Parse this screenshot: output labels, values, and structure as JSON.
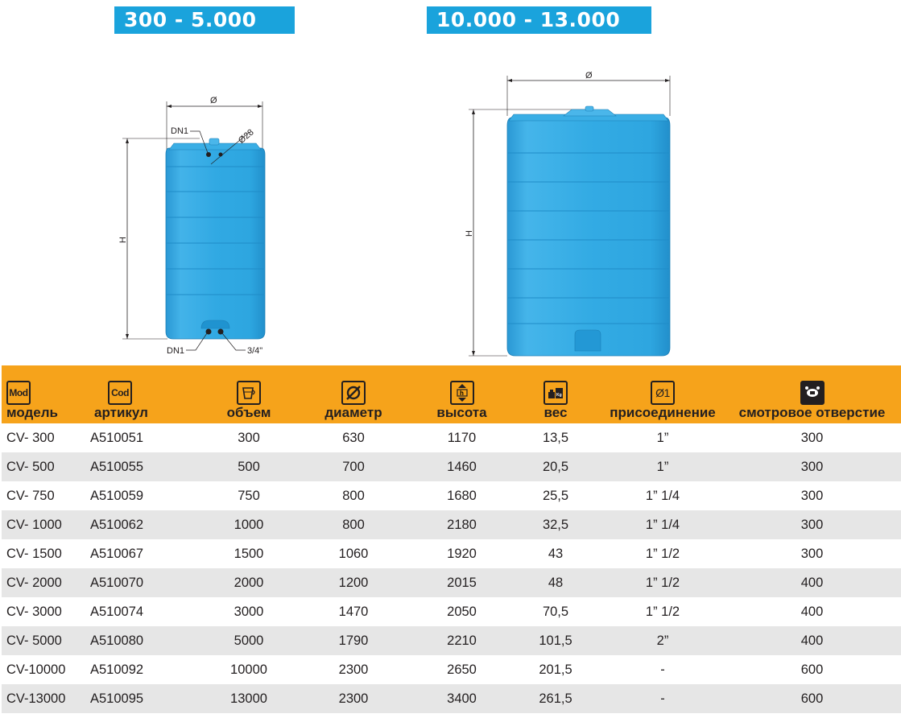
{
  "banners": {
    "left": "300 - 5.000",
    "right": "10.000 -  13.000"
  },
  "drawing_small": {
    "diameter_label": "Ø",
    "height_label": "H",
    "dn1_top": "DN1",
    "angle_label": "Ø28",
    "dn1_bottom": "DN1",
    "fitting_label": "3/4\""
  },
  "drawing_large": {
    "diameter_label": "Ø",
    "height_label": "H"
  },
  "table": {
    "headers": [
      {
        "icon": "Mod",
        "icon_name": "model-icon",
        "label": "модель"
      },
      {
        "icon": "Cod",
        "icon_name": "code-icon",
        "label": "артикул"
      },
      {
        "icon": "",
        "icon_name": "volume-icon",
        "label": "объем"
      },
      {
        "icon": "",
        "icon_name": "diameter-icon",
        "label": "диаметр"
      },
      {
        "icon": "",
        "icon_name": "height-icon",
        "label": "высота"
      },
      {
        "icon": "",
        "icon_name": "weight-icon",
        "label": "вес"
      },
      {
        "icon": "Ø1",
        "icon_name": "connection-icon",
        "label": "присоединение"
      },
      {
        "icon": "",
        "icon_name": "inspection-hatch-icon",
        "label": "смотровое отверстие"
      }
    ],
    "rows": [
      [
        "CV-  300",
        "A510051",
        "300",
        "630",
        "1170",
        "13,5",
        "1”",
        "300"
      ],
      [
        "CV-  500",
        "A510055",
        "500",
        "700",
        "1460",
        "20,5",
        "1”",
        "300"
      ],
      [
        "CV-  750",
        "A510059",
        "750",
        "800",
        "1680",
        "25,5",
        "1” 1/4",
        "300"
      ],
      [
        "CV- 1000",
        "A510062",
        "1000",
        "800",
        "2180",
        "32,5",
        "1” 1/4",
        "300"
      ],
      [
        "CV- 1500",
        "A510067",
        "1500",
        "1060",
        "1920",
        "43",
        "1” 1/2",
        "300"
      ],
      [
        "CV- 2000",
        "A510070",
        "2000",
        "1200",
        "2015",
        "48",
        "1” 1/2",
        "400"
      ],
      [
        "CV- 3000",
        "A510074",
        "3000",
        "1470",
        "2050",
        "70,5",
        "1” 1/2",
        "400"
      ],
      [
        "CV- 5000",
        "A510080",
        "5000",
        "1790",
        "2210",
        "101,5",
        "2”",
        "400"
      ],
      [
        "CV-10000",
        "A510092",
        "10000",
        "2300",
        "2650",
        "201,5",
        "-",
        "600"
      ],
      [
        "CV-13000",
        "A510095",
        "13000",
        "2300",
        "3400",
        "261,5",
        "-",
        "600"
      ]
    ]
  },
  "colors": {
    "banner_blue": "#1aa3dc",
    "tank_blue": "#2da8e2",
    "header_orange": "#f6a31b",
    "row_stripe": "#e6e6e6"
  }
}
